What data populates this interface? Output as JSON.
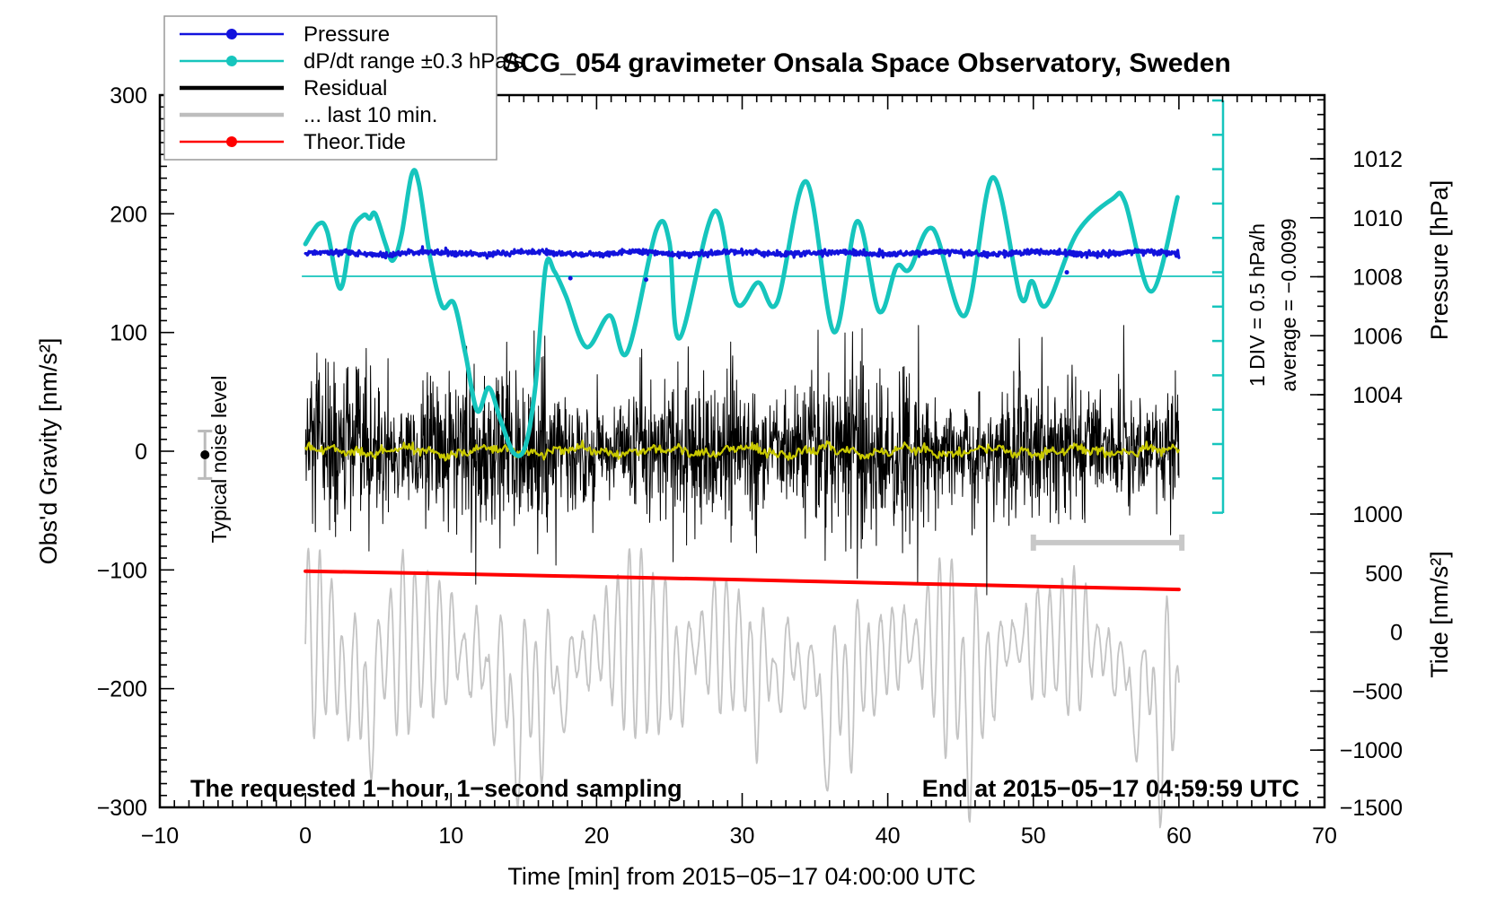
{
  "chart_data": {
    "type": "line",
    "title": "SCG_054 gravimeter Onsala Space Observatory, Sweden",
    "x_axis": {
      "title": "Time [min] from 2015−05−17 04:00:00 UTC",
      "min": -10,
      "max": 70,
      "major_tick_step": 10,
      "minor_tick_step": 1,
      "tick_values": [
        -10,
        0,
        10,
        20,
        30,
        40,
        50,
        60,
        70
      ]
    },
    "left_axis": {
      "title": "Obs'd Gravity [nm/s²]",
      "min": -300,
      "max": 300,
      "major_tick_step": 100,
      "minor_tick_step": 10,
      "tick_values": [
        300,
        200,
        100,
        0,
        -100,
        -200,
        -300
      ]
    },
    "right_pressure_axis": {
      "title": "Pressure [hPa]",
      "unit": "hPa",
      "tick_values": [
        1012,
        1010,
        1008,
        1006,
        1004
      ],
      "minor_step": 0.5
    },
    "right_tide_axis": {
      "title": "Tide [nm/s²]",
      "unit": "nm/s²",
      "tick_values": [
        1000,
        500,
        0,
        -500,
        -1000,
        -1500
      ],
      "minor_step": 100
    },
    "legend": {
      "items": [
        {
          "label": "Pressure",
          "color": "#1212dd",
          "marker": true,
          "width": 2.5
        },
        {
          "label": "dP/dt range ±0.3 hPa/s",
          "color": "#16c5bd",
          "marker": true,
          "width": 2.5
        },
        {
          "label": "Residual",
          "color": "#000000",
          "marker": false,
          "width": 4.5
        },
        {
          "label": "... last 10 min.",
          "color": "#bdbdbd",
          "marker": false,
          "width": 4.5
        },
        {
          "label": "Theor.Tide",
          "color": "#ff0000",
          "marker": true,
          "width": 2.5
        }
      ]
    },
    "series": {
      "pressure": {
        "name": "Pressure",
        "unit": "hPa",
        "axis": "pressure",
        "mean": 1008.8,
        "noise_std": 0.05,
        "color": "#1212dd",
        "outlier_dots": [
          [
            18.2,
            1007.95
          ],
          [
            23.4,
            1007.9
          ],
          [
            52.3,
            1008.15
          ]
        ]
      },
      "dpdt": {
        "name": "dP/dt range ±0.3 hPa/s",
        "unit": "hPa/h relative to average",
        "axis": "dpdt",
        "average": -0.0099,
        "div_value_hpa_per_h": 0.5,
        "color": "#16c5bd",
        "points": [
          [
            0,
            0.47
          ],
          [
            0.9,
            0.76
          ],
          [
            1.5,
            0.65
          ],
          [
            2.4,
            -0.18
          ],
          [
            3.2,
            0.65
          ],
          [
            4.0,
            0.89
          ],
          [
            4.4,
            0.84
          ],
          [
            4.8,
            0.91
          ],
          [
            5.5,
            0.47
          ],
          [
            6.0,
            0.23
          ],
          [
            6.6,
            0.6
          ],
          [
            7.3,
            1.48
          ],
          [
            7.8,
            1.34
          ],
          [
            8.6,
            0.23
          ],
          [
            9.4,
            -0.44
          ],
          [
            10.2,
            -0.39
          ],
          [
            11.0,
            -1.14
          ],
          [
            11.8,
            -1.96
          ],
          [
            12.6,
            -1.62
          ],
          [
            13.4,
            -2.09
          ],
          [
            14.3,
            -2.57
          ],
          [
            15.1,
            -2.48
          ],
          [
            15.8,
            -1.59
          ],
          [
            16.5,
            0.13
          ],
          [
            17.1,
            0.07
          ],
          [
            17.9,
            -0.29
          ],
          [
            19.3,
            -1.03
          ],
          [
            20.9,
            -0.57
          ],
          [
            22.1,
            -1.11
          ],
          [
            24.1,
            0.67
          ],
          [
            25.0,
            0.5
          ],
          [
            25.7,
            -0.9
          ],
          [
            28.1,
            0.95
          ],
          [
            29.6,
            -0.39
          ],
          [
            31.1,
            -0.09
          ],
          [
            32.4,
            -0.38
          ],
          [
            34.4,
            1.38
          ],
          [
            36.3,
            -0.81
          ],
          [
            37.9,
            0.8
          ],
          [
            39.4,
            -0.51
          ],
          [
            40.6,
            0.14
          ],
          [
            41.5,
            0.1
          ],
          [
            43.1,
            0.69
          ],
          [
            45.3,
            -0.57
          ],
          [
            47.2,
            1.44
          ],
          [
            49.1,
            -0.29
          ],
          [
            49.9,
            -0.07
          ],
          [
            50.9,
            -0.42
          ],
          [
            53.0,
            0.63
          ],
          [
            55.4,
            1.12
          ],
          [
            56.3,
            1.08
          ],
          [
            58.1,
            -0.22
          ],
          [
            59.9,
            1.15
          ]
        ]
      },
      "residual": {
        "name": "Residual",
        "unit": "nm/s²",
        "axis": "gravity",
        "mean": 0,
        "typical_std": 30,
        "clip": [
          -120,
          118
        ],
        "color": "#000000",
        "spikes": [
          [
            11.7,
            -112
          ],
          [
            17.2,
            -96
          ],
          [
            23.1,
            86
          ],
          [
            29.2,
            92
          ],
          [
            35.2,
            102
          ],
          [
            35.7,
            -92
          ],
          [
            42.1,
            106
          ],
          [
            46.8,
            -121
          ],
          [
            50.6,
            96
          ],
          [
            56.2,
            106
          ]
        ]
      },
      "residual_smoothed": {
        "name": "Residual (smoothed)",
        "unit": "nm/s²",
        "axis": "gravity",
        "mean": 0,
        "noise_std": 2,
        "color": "#c9c900"
      },
      "last_10_min": {
        "name": "... last 10 min.",
        "unit": "nm/s²",
        "axis": "gravity",
        "center": -188,
        "osc_period_min": 0.82,
        "amp_range": [
          15,
          80
        ],
        "color": "#c4c4c4"
      },
      "theor_tide": {
        "name": "Theor.Tide",
        "unit": "nm/s²",
        "axis": "tide",
        "color": "#ff0000",
        "points": [
          [
            0,
            516
          ],
          [
            10,
            494
          ],
          [
            20,
            469
          ],
          [
            30,
            443
          ],
          [
            40,
            415
          ],
          [
            50,
            388
          ],
          [
            60,
            361
          ]
        ]
      }
    },
    "scale_bar": {
      "label_line1": "1 DIV = 0.5 hPa/h",
      "label_line2": "average = −0.0099",
      "color": "#16c5bd"
    },
    "noise_marker": {
      "label": "Typical noise level",
      "t": -6.9,
      "value": -3,
      "error": 20
    },
    "last10_span_bar": {
      "t_start": 50,
      "t_end": 60.2,
      "value": -77,
      "color": "#c8c8c8"
    },
    "annotations": {
      "bottom_left": "The requested 1−hour, 1−second sampling",
      "bottom_right": "End at 2015−05−17 04:59:59 UTC"
    }
  }
}
